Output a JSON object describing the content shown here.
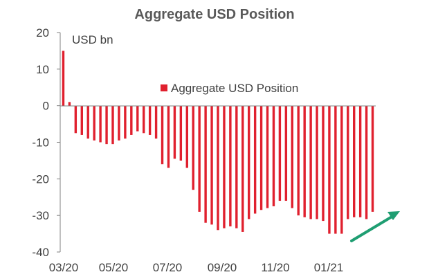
{
  "chart_data": {
    "type": "bar",
    "title": "Aggregate USD Position",
    "unit_label": "USD bn",
    "legend": [
      {
        "name": "Aggregate USD Position",
        "color": "#e0202e"
      }
    ],
    "legend_position": "top-right",
    "series": [
      {
        "name": "Aggregate USD Position",
        "color": "#e0202e",
        "values": [
          15,
          1,
          -7.5,
          -8,
          -9,
          -9.5,
          -10,
          -10.5,
          -10.5,
          -9.5,
          -9,
          -8,
          -7,
          -7.5,
          -8,
          -9,
          -16,
          -17,
          -14.5,
          -15,
          -17,
          -23,
          -29,
          -32,
          -32.5,
          -34,
          -33.5,
          -33,
          -33.5,
          -34.5,
          -31,
          -29.5,
          -28.5,
          -28,
          -27.5,
          -26,
          -26,
          -28,
          -30,
          -30.5,
          -31,
          -31,
          -31.5,
          -35,
          -35,
          -35,
          -31,
          -30.5,
          -30.5,
          -31,
          -29
        ]
      }
    ],
    "x_ticks": [
      "03/20",
      "05/20",
      "07/20",
      "09/20",
      "11/20",
      "01/21"
    ],
    "y_ticks": [
      "20",
      "10",
      "0",
      "-10",
      "-20",
      "-30",
      "-40"
    ],
    "ylim": [
      -40,
      20
    ],
    "grid": false,
    "annotation": {
      "type": "arrow",
      "color": "#1f9e72",
      "direction": "up-right"
    }
  }
}
